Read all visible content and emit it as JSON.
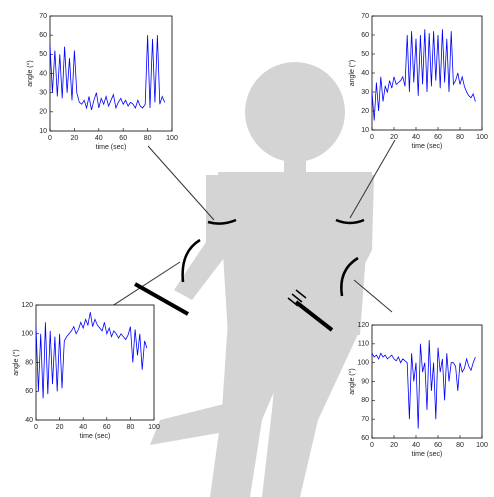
{
  "chart_data": [
    {
      "type": "line",
      "xlabel": "time (sec)",
      "ylabel": "angle (°)",
      "color": "#0000ff",
      "xlim": [
        0,
        100
      ],
      "xticks": [
        0,
        20,
        40,
        60,
        80,
        100
      ],
      "ylim": [
        10,
        70
      ],
      "yticks": [
        10,
        20,
        30,
        40,
        50,
        60,
        70
      ],
      "x": [
        0,
        2,
        4,
        6,
        8,
        10,
        12,
        14,
        16,
        18,
        20,
        22,
        24,
        26,
        28,
        30,
        32,
        34,
        36,
        38,
        40,
        42,
        44,
        46,
        48,
        50,
        52,
        54,
        56,
        58,
        60,
        62,
        64,
        66,
        68,
        70,
        72,
        74,
        76,
        78,
        80,
        82,
        84,
        86,
        88,
        90,
        92,
        94
      ],
      "values": [
        55,
        30,
        52,
        28,
        50,
        27,
        54,
        30,
        48,
        26,
        52,
        30,
        25,
        24,
        26,
        22,
        28,
        21,
        26,
        30,
        22,
        27,
        24,
        28,
        23,
        26,
        29,
        22,
        25,
        27,
        24,
        26,
        23,
        25,
        24,
        22,
        26,
        23,
        22,
        24,
        60,
        22,
        58,
        25,
        60,
        24,
        28,
        25
      ]
    },
    {
      "type": "line",
      "xlabel": "time (sec)",
      "ylabel": "angle (°)",
      "color": "#0000ff",
      "xlim": [
        0,
        100
      ],
      "xticks": [
        0,
        20,
        40,
        60,
        80,
        100
      ],
      "ylim": [
        10,
        70
      ],
      "yticks": [
        10,
        20,
        30,
        40,
        50,
        60,
        70
      ],
      "x": [
        0,
        2,
        4,
        6,
        8,
        10,
        12,
        14,
        16,
        18,
        20,
        22,
        24,
        26,
        28,
        30,
        32,
        34,
        36,
        38,
        40,
        42,
        44,
        46,
        48,
        50,
        52,
        54,
        56,
        58,
        60,
        62,
        64,
        66,
        68,
        70,
        72,
        74,
        76,
        78,
        80,
        82,
        84,
        86,
        88,
        90,
        92,
        94
      ],
      "values": [
        30,
        15,
        35,
        20,
        38,
        25,
        33,
        30,
        36,
        32,
        38,
        34,
        35,
        36,
        38,
        33,
        60,
        30,
        62,
        35,
        58,
        28,
        60,
        34,
        63,
        30,
        61,
        33,
        62,
        36,
        60,
        32,
        63,
        35,
        58,
        30,
        62,
        34,
        36,
        40,
        34,
        38,
        33,
        30,
        28,
        27,
        29,
        25
      ]
    },
    {
      "type": "line",
      "xlabel": "time (sec)",
      "ylabel": "angle (°)",
      "color": "#0000ff",
      "xlim": [
        0,
        100
      ],
      "xticks": [
        0,
        20,
        40,
        60,
        80,
        100
      ],
      "ylim": [
        40,
        120
      ],
      "yticks": [
        40,
        60,
        80,
        100,
        120
      ],
      "x": [
        0,
        2,
        4,
        6,
        8,
        10,
        12,
        14,
        16,
        18,
        20,
        22,
        24,
        26,
        28,
        30,
        32,
        34,
        36,
        38,
        40,
        42,
        44,
        46,
        48,
        50,
        52,
        54,
        56,
        58,
        60,
        62,
        64,
        66,
        68,
        70,
        72,
        74,
        76,
        78,
        80,
        82,
        84,
        86,
        88,
        90,
        92,
        94
      ],
      "values": [
        105,
        60,
        100,
        55,
        108,
        58,
        102,
        65,
        98,
        60,
        100,
        62,
        95,
        98,
        100,
        102,
        105,
        100,
        103,
        108,
        104,
        110,
        106,
        115,
        105,
        110,
        106,
        104,
        102,
        108,
        100,
        104,
        98,
        102,
        100,
        97,
        100,
        98,
        96,
        99,
        105,
        80,
        103,
        85,
        100,
        75,
        95,
        90
      ]
    },
    {
      "type": "line",
      "xlabel": "time (sec)",
      "ylabel": "angle (°)",
      "color": "#0000ff",
      "xlim": [
        0,
        100
      ],
      "xticks": [
        0,
        20,
        40,
        60,
        80,
        100
      ],
      "ylim": [
        60,
        120
      ],
      "yticks": [
        60,
        70,
        80,
        90,
        100,
        110,
        120
      ],
      "x": [
        0,
        2,
        4,
        6,
        8,
        10,
        12,
        14,
        16,
        18,
        20,
        22,
        24,
        26,
        28,
        30,
        32,
        34,
        36,
        38,
        40,
        42,
        44,
        46,
        48,
        50,
        52,
        54,
        56,
        58,
        60,
        62,
        64,
        66,
        68,
        70,
        72,
        74,
        76,
        78,
        80,
        82,
        84,
        86,
        88,
        90,
        92,
        94
      ],
      "values": [
        105,
        103,
        104,
        102,
        105,
        103,
        104,
        102,
        103,
        104,
        102,
        101,
        103,
        100,
        102,
        101,
        100,
        70,
        105,
        90,
        100,
        65,
        110,
        95,
        100,
        75,
        112,
        85,
        100,
        70,
        108,
        95,
        102,
        80,
        105,
        90,
        100,
        100,
        98,
        85,
        100,
        95,
        97,
        102,
        98,
        96,
        100,
        103
      ]
    }
  ]
}
